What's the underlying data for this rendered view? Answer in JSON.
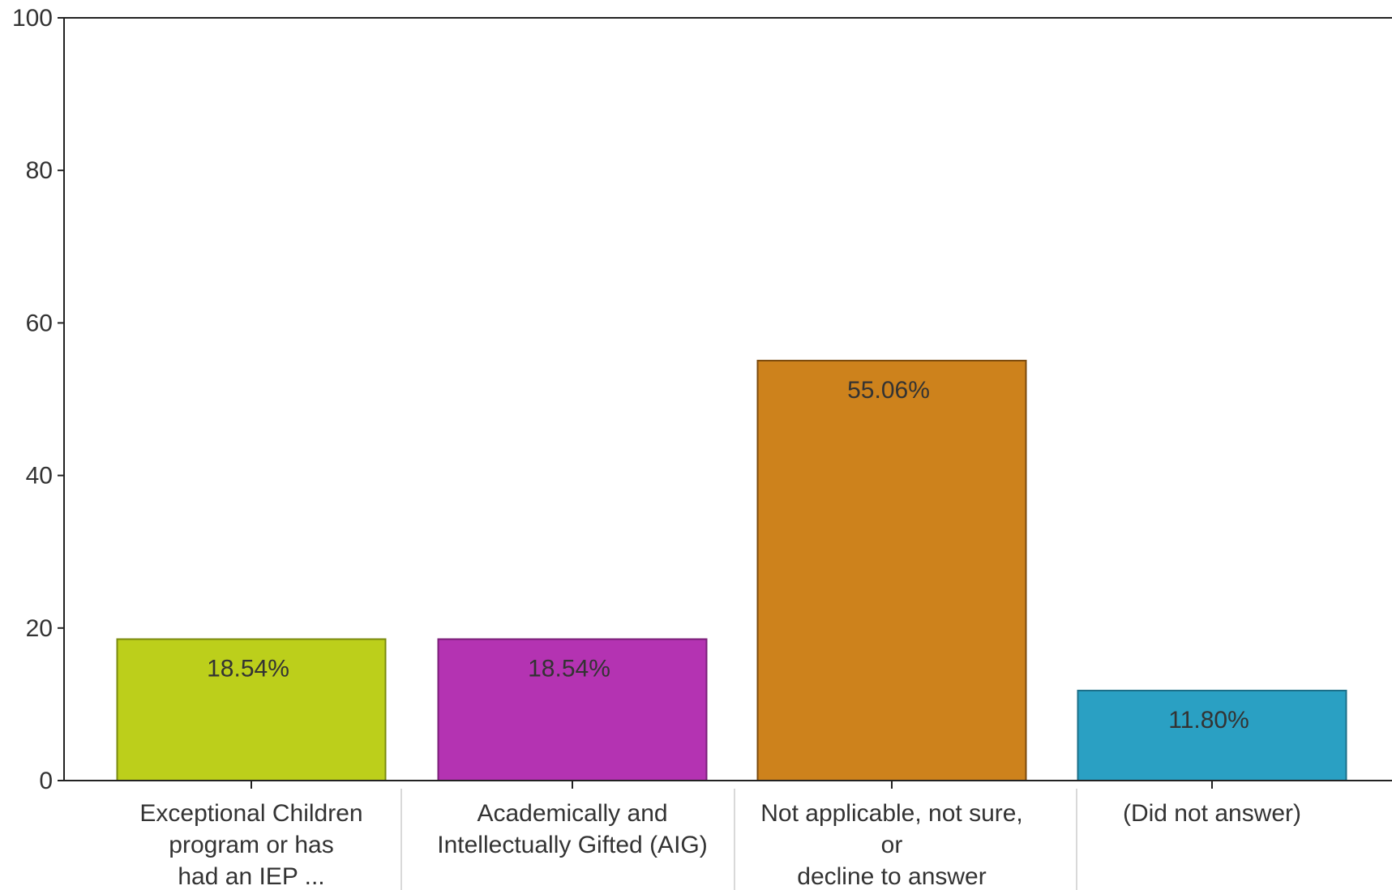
{
  "chart_data": {
    "type": "bar",
    "title": "",
    "xlabel": "",
    "ylabel": "",
    "ylim": [
      0,
      100
    ],
    "yticks": [
      0,
      20,
      40,
      60,
      80,
      100
    ],
    "grid": false,
    "legend": "none",
    "categories": [
      [
        "Exceptional Children",
        "program or has",
        "had an IEP  ..."
      ],
      [
        "Academically and",
        "Intellectually Gifted (AIG)"
      ],
      [
        "Not applicable, not sure,",
        "or",
        "decline to answer"
      ],
      [
        "(Did not answer)"
      ]
    ],
    "values": [
      18.54,
      18.54,
      55.06,
      11.8
    ],
    "value_labels": [
      "18.54%",
      "18.54%",
      "55.06%",
      "11.80%"
    ],
    "colors": [
      "#bccf1b",
      "#b433b2",
      "#cd821c",
      "#2aa0c3"
    ],
    "border_colors": [
      "#7a8a10",
      "#7a1f78",
      "#7a4a0e",
      "#1c6f88"
    ],
    "axis_color": "#222222",
    "separator_color": "#cccccc"
  }
}
